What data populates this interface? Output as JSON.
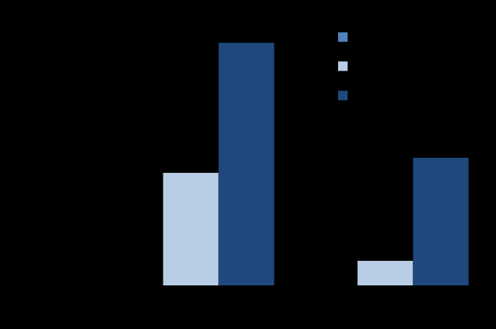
{
  "chart_data": {
    "type": "bar",
    "categories": [
      null,
      null
    ],
    "series": [
      {
        "color": "#4f81bd",
        "values": [
          0,
          0
        ]
      },
      {
        "color": "#b9cde5",
        "values": [
          43,
          9.4
        ]
      },
      {
        "color": "#1f497d",
        "values": [
          92.7,
          48.8
        ]
      }
    ],
    "ylim": [
      0,
      100
    ],
    "grid": false,
    "tick_labels": false,
    "legend": "upper right"
  }
}
